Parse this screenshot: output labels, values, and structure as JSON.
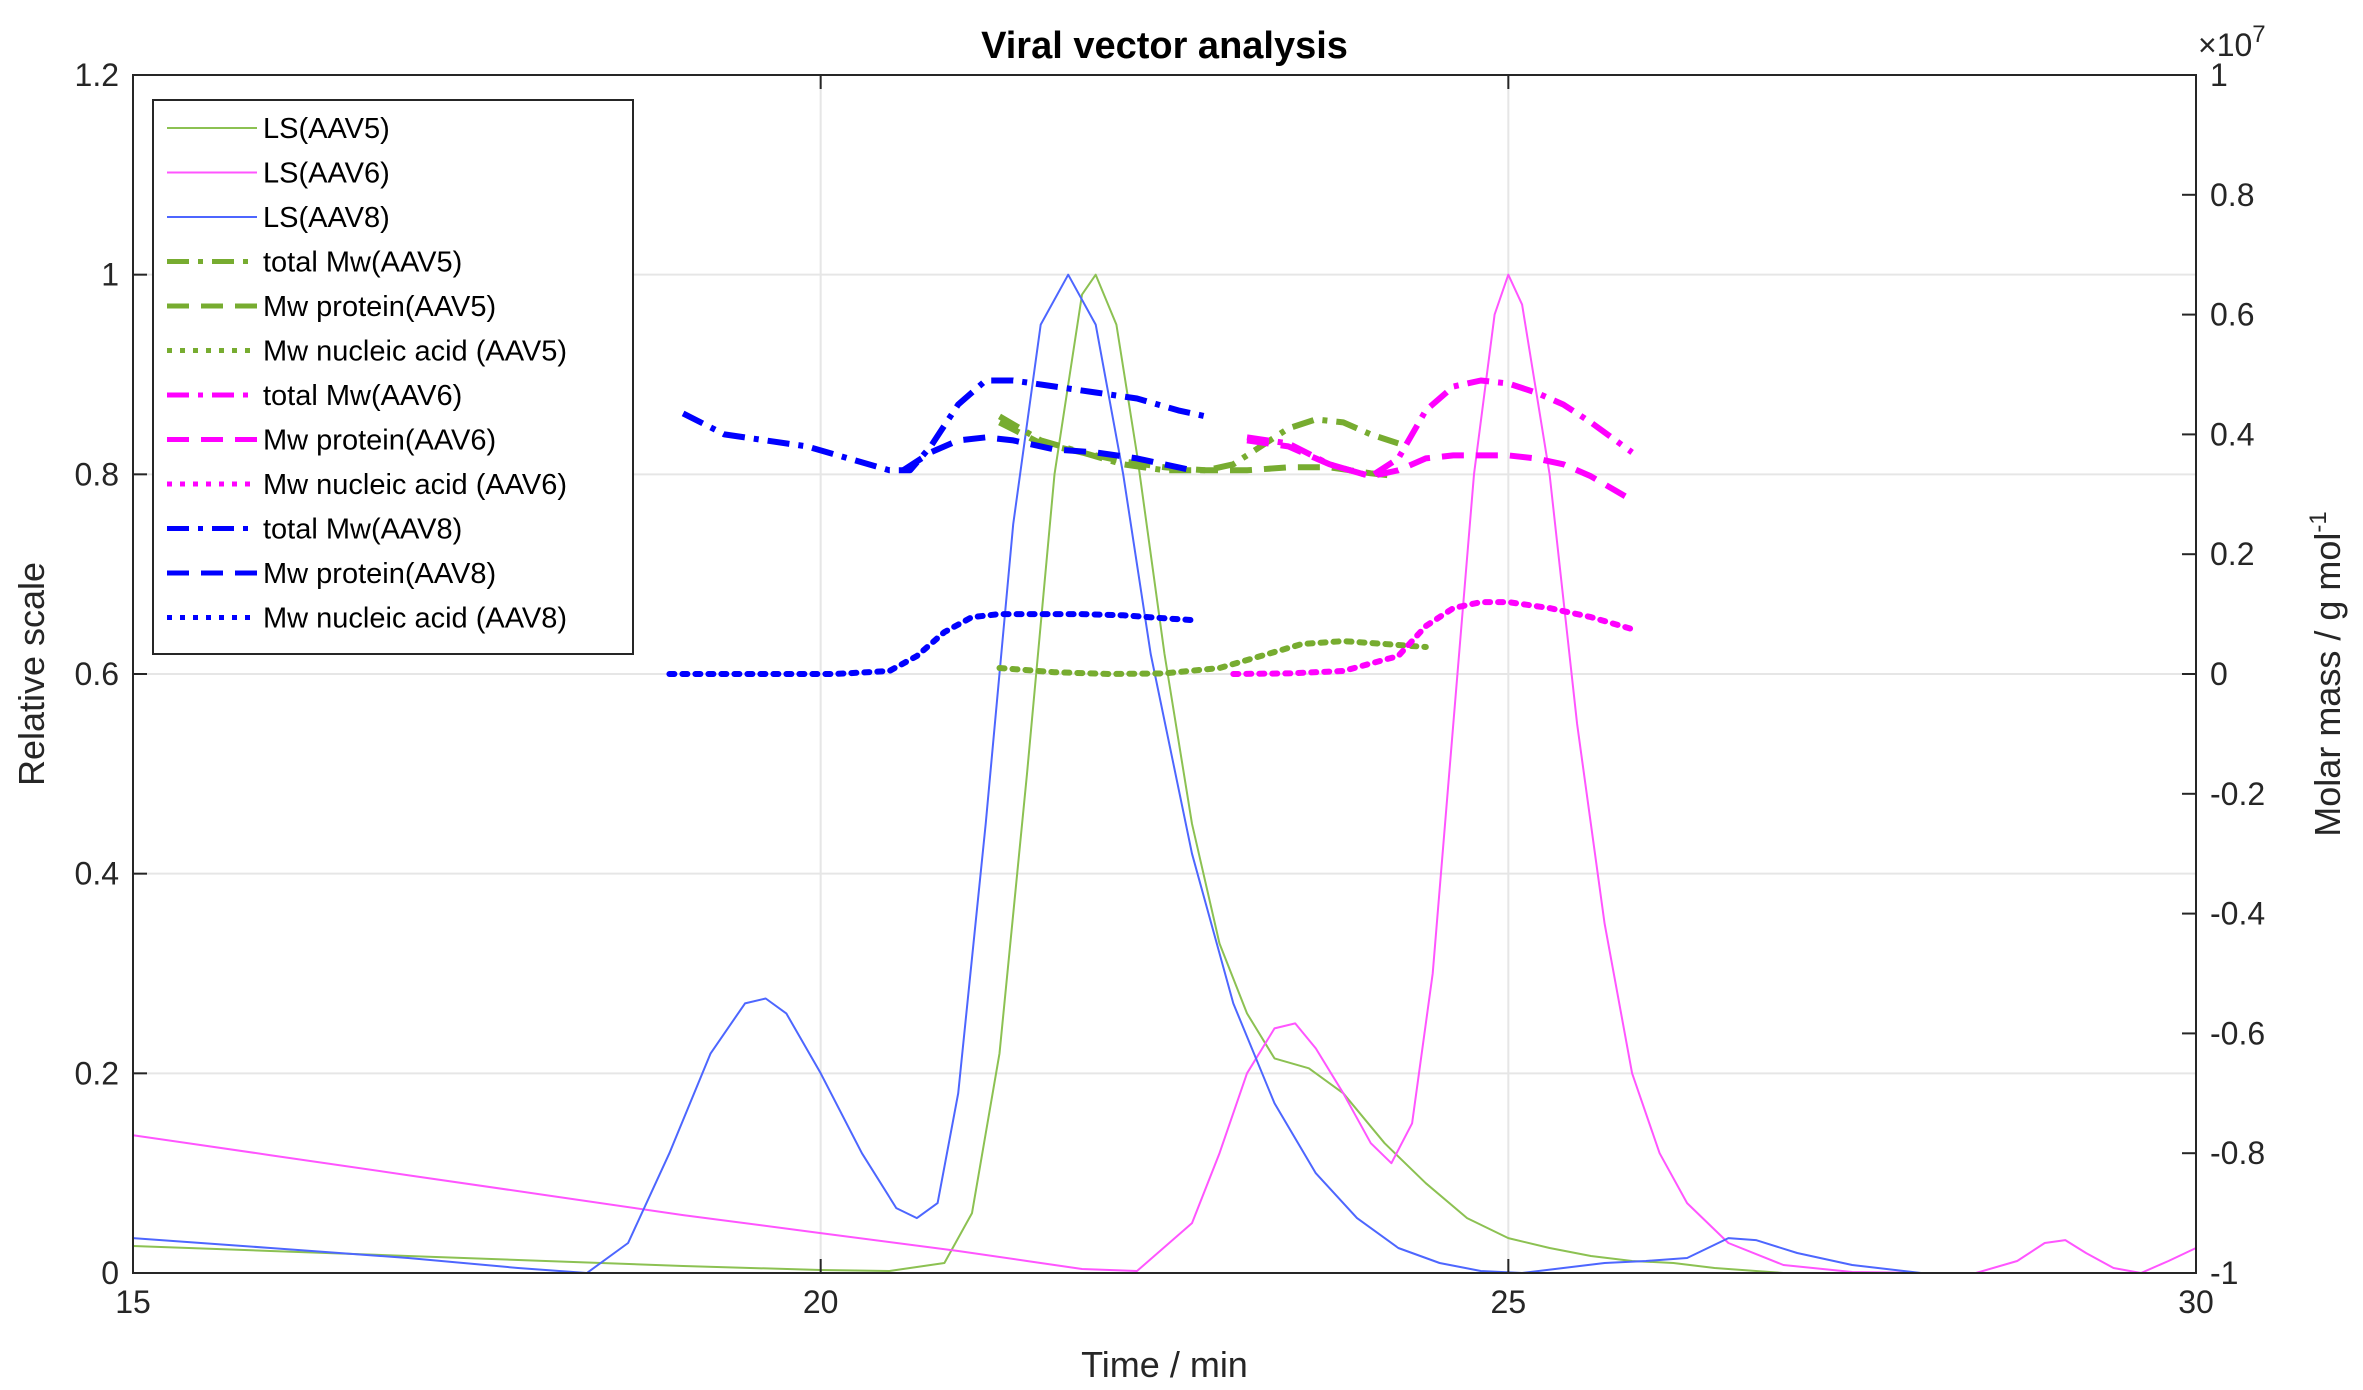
{
  "chart_data": {
    "type": "line",
    "title": "Viral vector analysis",
    "xlabel": "Time / min",
    "ylabel_left": "Relative scale",
    "ylabel_right_main": "Molar mass / g mol",
    "ylabel_right_sup": "-1",
    "right_axis_exponent": "×10",
    "right_axis_exponent_power": "7",
    "xlim": [
      15,
      30
    ],
    "ylim_left": [
      0,
      1.2
    ],
    "ylim_right": [
      -1,
      1
    ],
    "x_ticks": [
      15,
      20,
      25,
      30
    ],
    "x_tick_labels": [
      "15",
      "20",
      "25",
      "30"
    ],
    "y_left_ticks": [
      0,
      0.2,
      0.4,
      0.6,
      0.8,
      1,
      1.2
    ],
    "y_left_tick_labels": [
      "0",
      "0.2",
      "0.4",
      "0.6",
      "0.8",
      "1",
      "1.2"
    ],
    "y_right_ticks": [
      -1,
      -0.8,
      -0.6,
      -0.4,
      -0.2,
      0,
      0.2,
      0.4,
      0.6,
      0.8,
      1
    ],
    "y_right_tick_labels": [
      "-1",
      "-0.8",
      "-0.6",
      "-0.4",
      "-0.2",
      "0",
      "0.2",
      "0.4",
      "0.6",
      "0.8",
      "1"
    ],
    "grid": true,
    "legend_position": "top-left",
    "colors": {
      "aav5": "#77ac30",
      "aav5_light": "#8cc152",
      "aav6": "#ff00ff",
      "aav6_light": "#ff55ff",
      "aav8": "#0000ff",
      "aav8_light": "#4d66ff"
    },
    "series": [
      {
        "name": "LS(AAV5)",
        "axis": "left",
        "style": "solid-thin",
        "color": "#8cc152",
        "x": [
          15,
          16,
          17,
          18,
          19,
          20,
          20.5,
          20.9,
          21.1,
          21.3,
          21.5,
          21.7,
          21.9,
          22.0,
          22.15,
          22.3,
          22.5,
          22.7,
          22.9,
          23.1,
          23.3,
          23.55,
          23.8,
          24.1,
          24.4,
          24.7,
          25.0,
          25.3,
          25.6,
          25.9,
          26.2,
          26.5,
          27.0,
          30
        ],
        "y": [
          0.027,
          0.022,
          0.017,
          0.012,
          0.007,
          0.003,
          0.002,
          0.01,
          0.06,
          0.22,
          0.5,
          0.8,
          0.98,
          1.0,
          0.95,
          0.82,
          0.62,
          0.45,
          0.33,
          0.26,
          0.215,
          0.205,
          0.18,
          0.13,
          0.09,
          0.055,
          0.035,
          0.025,
          0.017,
          0.012,
          0.01,
          0.005,
          0.0,
          0.0
        ]
      },
      {
        "name": "LS(AAV6)",
        "axis": "left",
        "style": "solid-thin",
        "color": "#ff55ff",
        "x": [
          15,
          16,
          17,
          18,
          19,
          20,
          21,
          21.5,
          21.9,
          22.3,
          22.7,
          22.9,
          23.1,
          23.3,
          23.45,
          23.6,
          23.8,
          24.0,
          24.15,
          24.3,
          24.45,
          24.6,
          24.75,
          24.9,
          25.0,
          25.1,
          25.3,
          25.5,
          25.7,
          25.9,
          26.1,
          26.3,
          26.6,
          27.0,
          27.5,
          28.0,
          28.4,
          28.7,
          28.9,
          29.05,
          29.2,
          29.4,
          29.6,
          29.8,
          30
        ],
        "y": [
          0.138,
          0.118,
          0.098,
          0.078,
          0.058,
          0.04,
          0.022,
          0.012,
          0.004,
          0.002,
          0.05,
          0.12,
          0.2,
          0.245,
          0.25,
          0.225,
          0.18,
          0.13,
          0.11,
          0.15,
          0.3,
          0.55,
          0.8,
          0.96,
          1.0,
          0.97,
          0.8,
          0.55,
          0.35,
          0.2,
          0.12,
          0.07,
          0.03,
          0.008,
          0.001,
          0.0,
          0.0,
          0.012,
          0.03,
          0.033,
          0.02,
          0.005,
          0.0,
          0.012,
          0.025
        ]
      },
      {
        "name": "LS(AAV8)",
        "axis": "left",
        "style": "solid-thin",
        "color": "#4d66ff",
        "x": [
          15,
          16,
          17,
          17.8,
          18.3,
          18.6,
          18.9,
          19.2,
          19.45,
          19.6,
          19.75,
          20.0,
          20.3,
          20.55,
          20.7,
          20.85,
          21.0,
          21.2,
          21.4,
          21.6,
          21.8,
          22.0,
          22.2,
          22.4,
          22.7,
          23.0,
          23.3,
          23.6,
          23.9,
          24.2,
          24.5,
          24.8,
          25.1,
          25.4,
          25.7,
          26.0,
          26.3,
          26.6,
          26.8,
          27.1,
          27.5,
          28.0,
          30
        ],
        "y": [
          0.035,
          0.025,
          0.015,
          0.005,
          0.0,
          0.03,
          0.12,
          0.22,
          0.27,
          0.275,
          0.26,
          0.2,
          0.12,
          0.065,
          0.055,
          0.07,
          0.18,
          0.45,
          0.75,
          0.95,
          1.0,
          0.95,
          0.8,
          0.62,
          0.42,
          0.27,
          0.17,
          0.1,
          0.055,
          0.025,
          0.01,
          0.002,
          0.0,
          0.005,
          0.01,
          0.012,
          0.015,
          0.035,
          0.033,
          0.02,
          0.008,
          0.0,
          0.0
        ]
      },
      {
        "name": "total Mw(AAV5)",
        "axis": "right",
        "style": "dashdot",
        "color": "#77ac30",
        "x": [
          21.3,
          21.6,
          21.9,
          22.2,
          22.5,
          22.8,
          23.0,
          23.2,
          23.4,
          23.6,
          23.8,
          24.0,
          24.2
        ],
        "y": [
          0.43,
          0.39,
          0.37,
          0.35,
          0.34,
          0.34,
          0.35,
          0.38,
          0.41,
          0.425,
          0.42,
          0.4,
          0.385
        ]
      },
      {
        "name": "Mw protein(AAV5)",
        "axis": "right",
        "style": "dash",
        "color": "#77ac30",
        "x": [
          21.3,
          21.6,
          21.9,
          22.2,
          22.5,
          22.8,
          23.1,
          23.4,
          23.7,
          24.0,
          24.2
        ],
        "y": [
          0.42,
          0.385,
          0.37,
          0.355,
          0.345,
          0.34,
          0.34,
          0.345,
          0.345,
          0.335,
          0.33
        ]
      },
      {
        "name": "Mw nucleic acid (AAV5)",
        "axis": "right",
        "style": "dot",
        "color": "#77ac30",
        "x": [
          21.3,
          21.7,
          22.1,
          22.5,
          22.9,
          23.2,
          23.5,
          23.8,
          24.1,
          24.4
        ],
        "y": [
          0.01,
          0.003,
          0.0,
          0.001,
          0.01,
          0.03,
          0.05,
          0.055,
          0.05,
          0.045
        ]
      },
      {
        "name": "total Mw(AAV6)",
        "axis": "right",
        "style": "dashdot",
        "color": "#ff00ff",
        "x": [
          23.1,
          23.4,
          23.7,
          24.0,
          24.2,
          24.4,
          24.6,
          24.8,
          25.0,
          25.2,
          25.4,
          25.6,
          25.9
        ],
        "y": [
          0.395,
          0.385,
          0.35,
          0.33,
          0.36,
          0.44,
          0.48,
          0.49,
          0.485,
          0.47,
          0.45,
          0.42,
          0.37
        ]
      },
      {
        "name": "Mw protein(AAV6)",
        "axis": "right",
        "style": "dash",
        "color": "#ff00ff",
        "x": [
          23.1,
          23.4,
          23.7,
          24.0,
          24.2,
          24.4,
          24.6,
          24.8,
          25.0,
          25.2,
          25.4,
          25.6,
          25.9
        ],
        "y": [
          0.39,
          0.38,
          0.35,
          0.33,
          0.34,
          0.36,
          0.365,
          0.365,
          0.365,
          0.36,
          0.35,
          0.33,
          0.29
        ]
      },
      {
        "name": "Mw nucleic acid (AAV6)",
        "axis": "right",
        "style": "dot",
        "color": "#ff00ff",
        "x": [
          23.0,
          23.4,
          23.8,
          24.2,
          24.4,
          24.6,
          24.8,
          25.0,
          25.3,
          25.6,
          25.9
        ],
        "y": [
          0.0,
          0.001,
          0.005,
          0.03,
          0.08,
          0.11,
          0.12,
          0.12,
          0.11,
          0.095,
          0.075
        ]
      },
      {
        "name": "total Mw(AAV8)",
        "axis": "right",
        "style": "dashdot",
        "color": "#0000ff",
        "x": [
          19.0,
          19.3,
          19.6,
          19.9,
          20.2,
          20.5,
          20.65,
          20.8,
          21.0,
          21.2,
          21.4,
          21.7,
          22.0,
          22.3,
          22.6,
          22.8
        ],
        "y": [
          0.435,
          0.4,
          0.39,
          0.38,
          0.36,
          0.34,
          0.34,
          0.38,
          0.45,
          0.49,
          0.49,
          0.48,
          0.47,
          0.46,
          0.44,
          0.43
        ]
      },
      {
        "name": "Mw protein(AAV8)",
        "axis": "right",
        "style": "dash",
        "color": "#0000ff",
        "x": [
          20.6,
          20.8,
          21.0,
          21.2,
          21.4,
          21.7,
          22.0,
          22.3,
          22.6,
          22.7
        ],
        "y": [
          0.34,
          0.37,
          0.39,
          0.395,
          0.39,
          0.375,
          0.37,
          0.36,
          0.345,
          0.34
        ]
      },
      {
        "name": "Mw nucleic acid (AAV8)",
        "axis": "right",
        "style": "dot",
        "color": "#0000ff",
        "x": [
          18.9,
          19.3,
          19.7,
          20.1,
          20.5,
          20.7,
          20.9,
          21.1,
          21.3,
          21.6,
          21.9,
          22.2,
          22.5,
          22.7
        ],
        "y": [
          0.0,
          0.0,
          0.0,
          0.0,
          0.005,
          0.03,
          0.07,
          0.095,
          0.1,
          0.1,
          0.1,
          0.098,
          0.093,
          0.09
        ]
      }
    ]
  }
}
